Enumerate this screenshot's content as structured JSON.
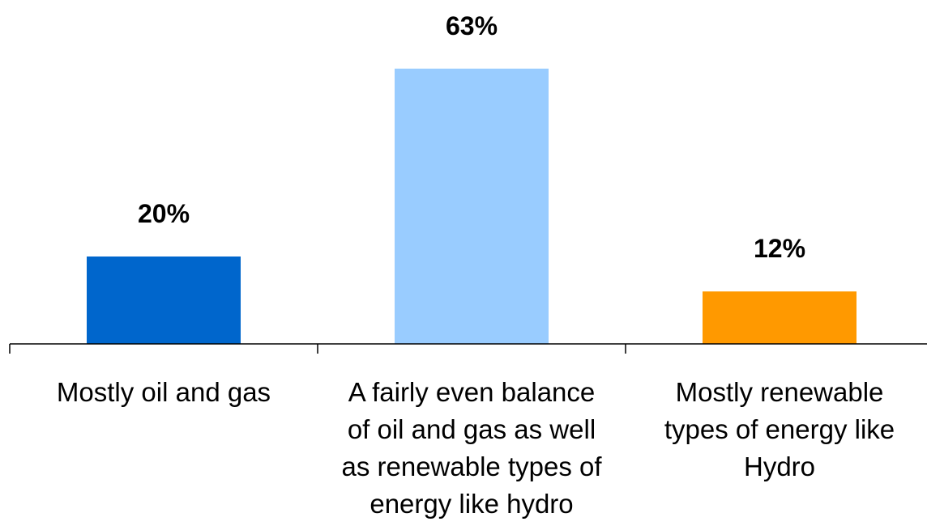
{
  "chart_data": {
    "type": "bar",
    "categories": [
      "Mostly oil and gas",
      "A fairly even balance\nof oil and gas as well\nas renewable types of\nenergy like hydro",
      "Mostly renewable\ntypes of energy like\nHydro"
    ],
    "values": [
      20,
      63,
      12
    ],
    "value_labels": [
      "20%",
      "63%",
      "12%"
    ],
    "colors": [
      "#0066cc",
      "#99ccff",
      "#ff9900"
    ],
    "ylim": [
      0,
      70
    ],
    "grid": false,
    "legend": "none"
  }
}
